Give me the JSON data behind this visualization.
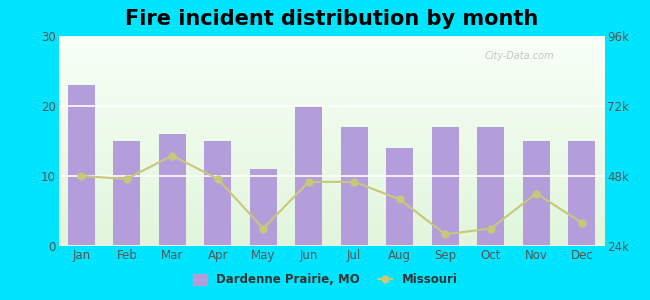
{
  "title": "Fire incident distribution by month",
  "months": [
    "Jan",
    "Feb",
    "Mar",
    "Apr",
    "May",
    "Jun",
    "Jul",
    "Aug",
    "Sep",
    "Oct",
    "Nov",
    "Dec"
  ],
  "bar_values": [
    23,
    15,
    16,
    15,
    11,
    20,
    17,
    14,
    17,
    17,
    15,
    15
  ],
  "line_values": [
    48000,
    47000,
    55000,
    47000,
    30000,
    46000,
    46000,
    40000,
    28000,
    30000,
    42000,
    32000
  ],
  "bar_color": "#b39ddb",
  "bar_edge_color": "#b39ddb",
  "line_color": "#c8c87a",
  "line_marker": "o",
  "line_marker_color": "#c8c87a",
  "background_outer": "#00e5ff",
  "ylim_left": [
    0,
    30
  ],
  "ylim_right": [
    24000,
    96000
  ],
  "yticks_left": [
    0,
    10,
    20,
    30
  ],
  "ytick_labels_right": [
    "24k",
    "48k",
    "72k",
    "96k"
  ],
  "legend_label_bar": "Dardenne Prairie, MO",
  "legend_label_line": "Missouri",
  "title_fontsize": 15,
  "watermark_text": "City-Data.com"
}
